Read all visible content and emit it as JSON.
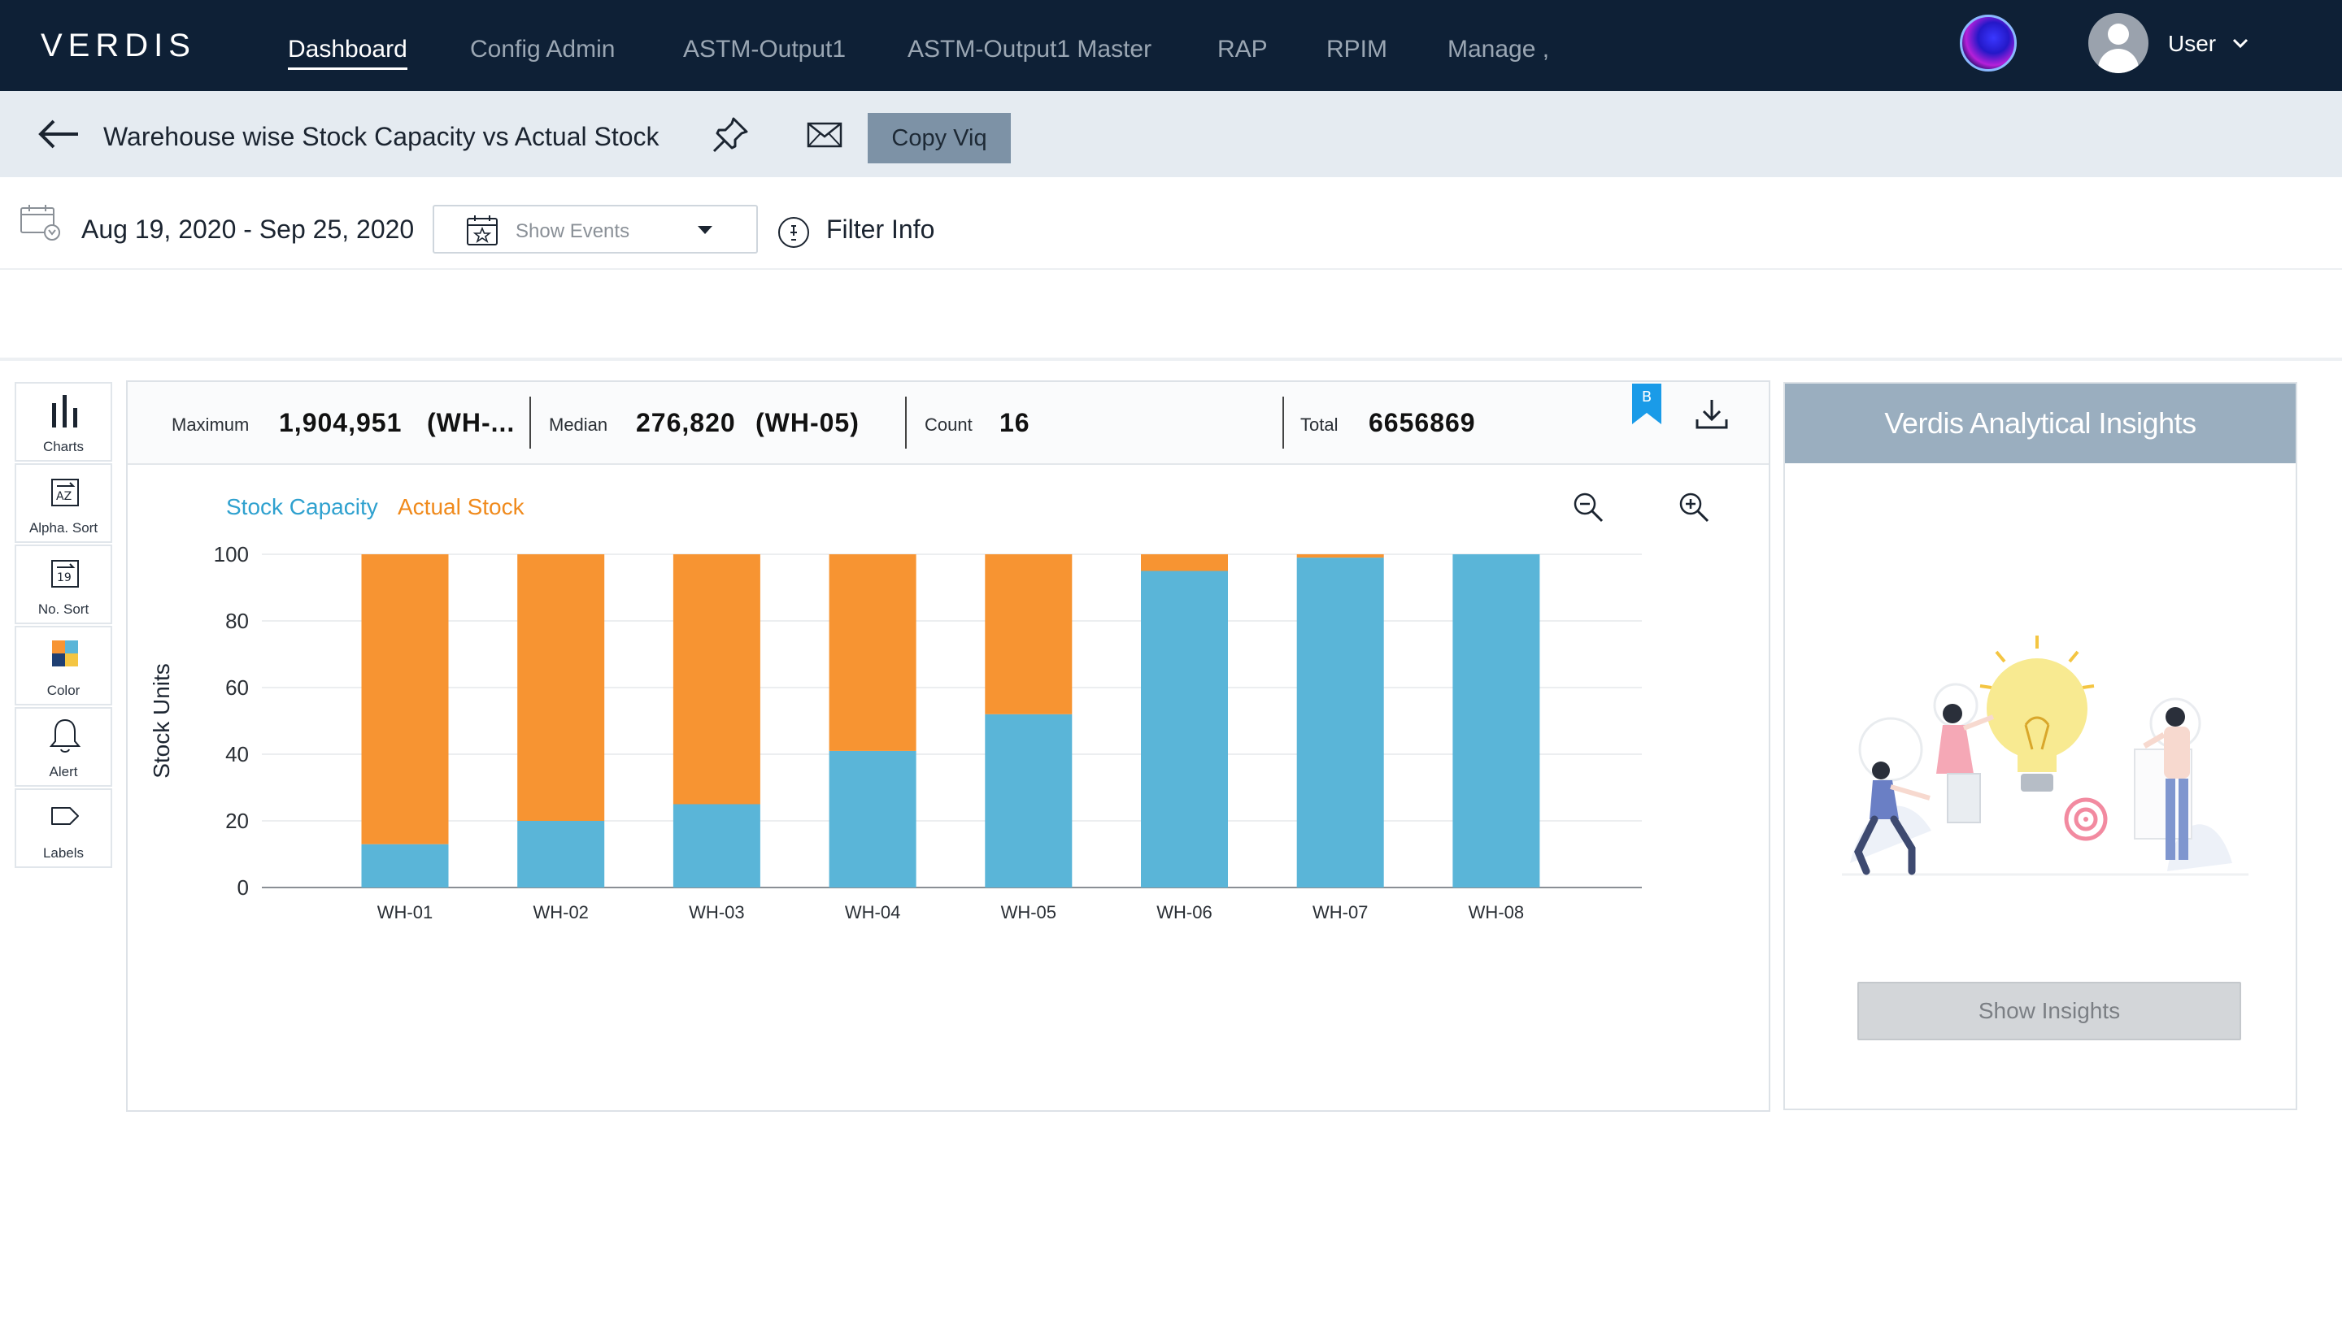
{
  "app": {
    "logo": "VERDIS",
    "nav": [
      "Dashboard",
      "Config Admin",
      "ASTM-Output1",
      "ASTM-Output1 Master",
      "RAP",
      "RPIM",
      "Manage ,"
    ],
    "user_label": "User"
  },
  "titlebar": {
    "title": "Warehouse wise Stock Capacity vs Actual Stock",
    "copy_label": "Copy Viq"
  },
  "filters": {
    "date_range": "Aug 19, 2020 - Sep 25, 2020",
    "events_placeholder": "Show Events",
    "filter_info": "Filter Info"
  },
  "toolbar": [
    "Charts",
    "Alpha. Sort",
    "No. Sort",
    "Color",
    "Alert",
    "Labels"
  ],
  "stats": {
    "max_label": "Maximum",
    "max_value": "1,904,951",
    "max_wh": "(WH-...",
    "median_label": "Median",
    "median_value": "276,820",
    "median_wh": "(WH-05)",
    "count_label": "Count",
    "count_value": "16",
    "total_label": "Total",
    "total_value": "6656869",
    "bookmark_letter": "B"
  },
  "colors": {
    "capacity": "#5ab5d8",
    "actual": "#f79432",
    "nav_bg": "#0e2036"
  },
  "chart_data": {
    "type": "bar",
    "stacked": true,
    "categories": [
      "WH-01",
      "WH-02",
      "WH-03",
      "WH-04",
      "WH-05",
      "WH-06",
      "WH-07",
      "WH-08"
    ],
    "series": [
      {
        "name": "Stock Capacity",
        "values": [
          13,
          20,
          25,
          41,
          52,
          95,
          99,
          100
        ]
      },
      {
        "name": "Actual Stock",
        "values": [
          87,
          80,
          75,
          59,
          48,
          5,
          1,
          0
        ]
      }
    ],
    "ylabel": "Stock Units",
    "ylim": [
      0,
      100
    ],
    "yticks": [
      0,
      20,
      40,
      60,
      80,
      100
    ],
    "grid": true,
    "legend": "top-left"
  },
  "insights": {
    "title": "Verdis Analytical Insights",
    "button": "Show Insights"
  }
}
